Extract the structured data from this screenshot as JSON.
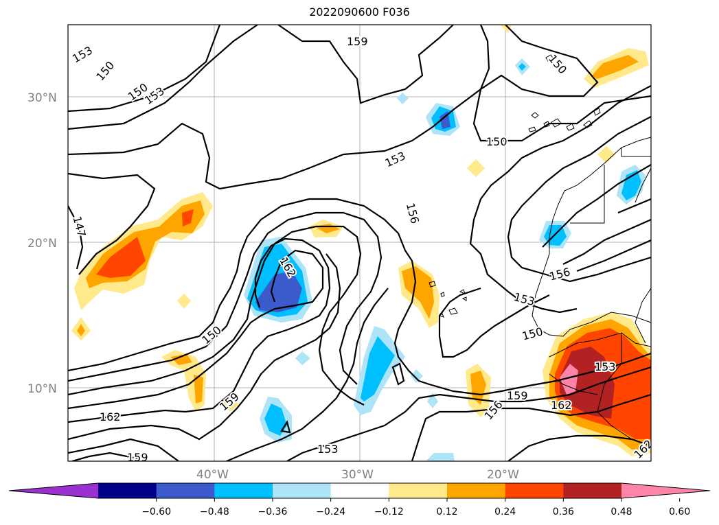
{
  "title": "2022090600 F036",
  "map": {
    "lat_ticks": [
      "30°N",
      "20°N",
      "10°N"
    ],
    "lon_ticks": [
      "40°W",
      "30°W",
      "20°W"
    ],
    "contour_labels": [
      "153",
      "150",
      "150",
      "153",
      "159",
      "153",
      "150",
      "150",
      "147",
      "156",
      "150",
      "153",
      "156",
      "162",
      "150",
      "159",
      "162",
      "159",
      "153",
      "156",
      "159",
      "153",
      "162",
      "162"
    ]
  },
  "colorbar": {
    "tick_labels": [
      "−0.60",
      "−0.48",
      "−0.36",
      "−0.24",
      "−0.12",
      "0.12",
      "0.24",
      "0.36",
      "0.48",
      "0.60"
    ],
    "colors": [
      "#9b30d0",
      "#00008b",
      "#3b5bcc",
      "#00bfff",
      "#ade4f7",
      "#ffffff",
      "#ffe98a",
      "#ffa500",
      "#ff4500",
      "#b22222",
      "#ff85a8"
    ]
  }
}
